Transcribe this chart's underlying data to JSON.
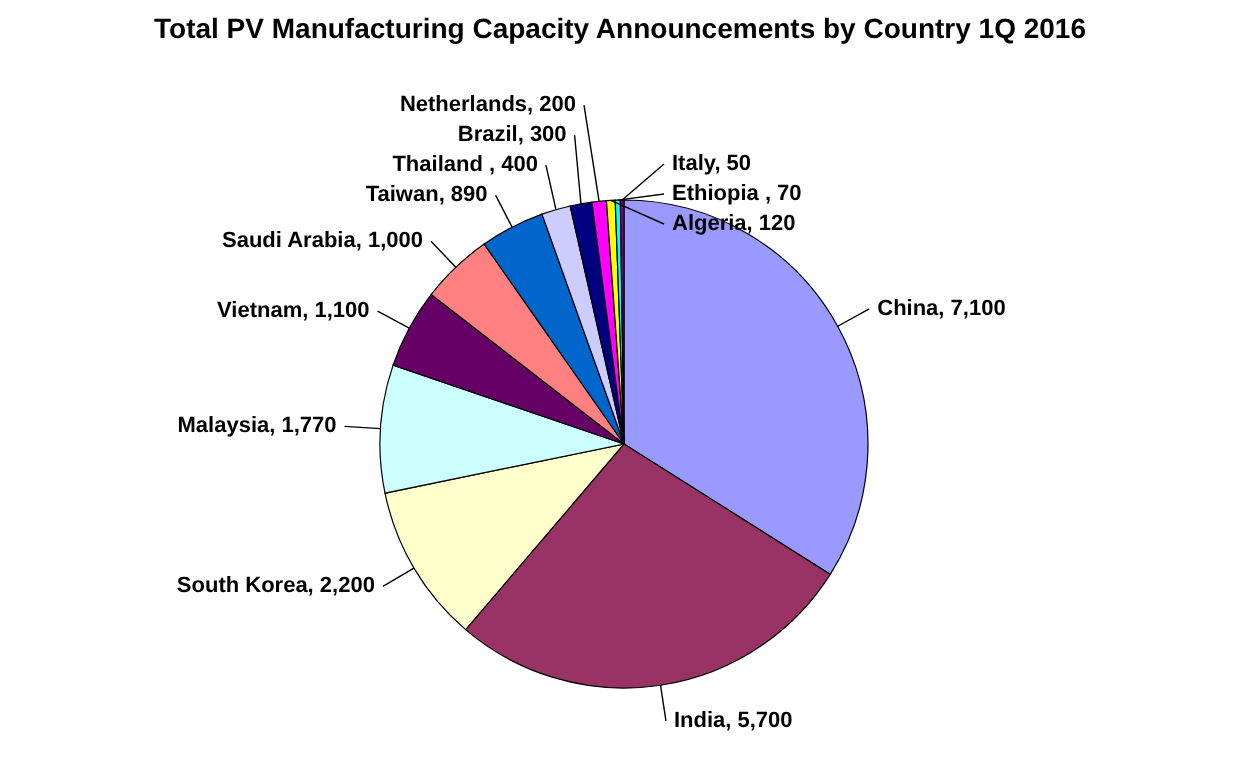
{
  "chart_data": {
    "type": "pie",
    "title": "Total PV Manufacturing Capacity Announcements by Country 1Q 2016",
    "categories": [
      "China",
      "India",
      "South Korea",
      "Malaysia",
      "Vietnam",
      "Saudi Arabia",
      "Taiwan",
      "Thailand ",
      "Brazil",
      "Netherlands",
      "Algeria",
      "Ethiopia ",
      "Italy"
    ],
    "values": [
      7100,
      5700,
      2200,
      1770,
      1100,
      1000,
      890,
      400,
      300,
      200,
      120,
      70,
      50
    ],
    "value_labels": [
      "7,100",
      "5,700",
      "2,200",
      "1,770",
      "1,100",
      "1,000",
      "890",
      "400",
      "300",
      "200",
      "120",
      "70",
      "50"
    ],
    "colors": [
      "#9999ff",
      "#993366",
      "#ffffcc",
      "#ccffff",
      "#660066",
      "#ff8080",
      "#0066cc",
      "#ccccff",
      "#000080",
      "#ff00ff",
      "#ffff00",
      "#00ffff",
      "#800080"
    ]
  }
}
